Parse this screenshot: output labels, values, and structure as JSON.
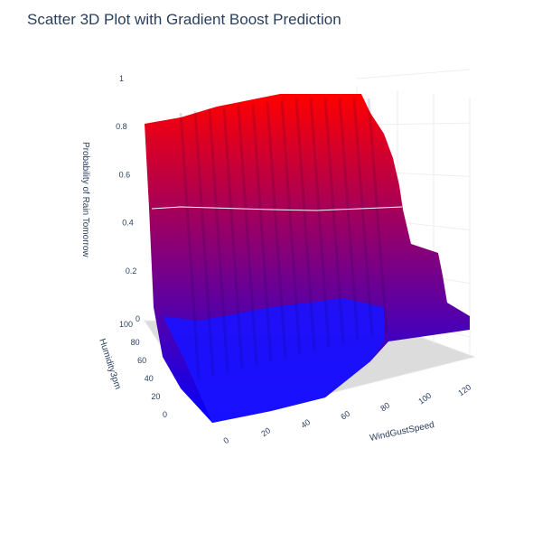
{
  "chart_data": {
    "type": "surface",
    "title": "Scatter 3D Plot with Gradient Boost Prediction",
    "x_axis": {
      "label": "WindGustSpeed",
      "ticks": [
        0,
        20,
        40,
        60,
        80,
        100,
        120
      ],
      "range": [
        0,
        125
      ]
    },
    "y_axis": {
      "label": "Humidity3pm",
      "ticks": [
        0,
        20,
        40,
        60,
        80,
        100
      ],
      "range": [
        0,
        100
      ]
    },
    "z_axis": {
      "label": "Probability of Rain Tomorrow",
      "ticks": [
        0,
        0.2,
        0.4,
        0.6,
        0.8,
        1
      ],
      "range": [
        0,
        1
      ]
    },
    "colorscale": {
      "low": "#0000ff",
      "high": "#ff0000"
    },
    "threshold_line": {
      "z": 0.5,
      "color": "#ffffff"
    },
    "surface_profile": {
      "description_humidity_levels": [
        0,
        20,
        40,
        60,
        80,
        100
      ],
      "probability_at_low_wind_by_humidity": [
        0.02,
        0.04,
        0.1,
        0.35,
        0.8,
        0.84
      ],
      "probability_at_high_wind_by_humidity": [
        0.05,
        0.07,
        0.08,
        0.09,
        0.12,
        0.15
      ]
    }
  }
}
